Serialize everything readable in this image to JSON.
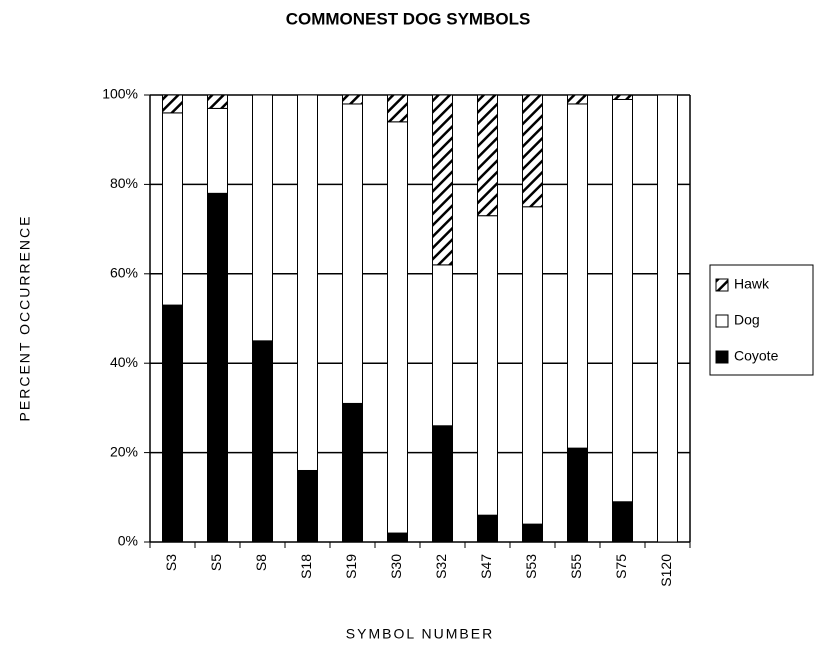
{
  "chart_data": {
    "type": "stacked_bar",
    "title": "COMMONEST DOG SYMBOLS",
    "x_label": "SYMBOL NUMBER",
    "y_label": "PERCENT OCCURRENCE",
    "categories": [
      "S3",
      "S5",
      "S8",
      "S18",
      "S19",
      "S30",
      "S32",
      "S47",
      "S53",
      "S55",
      "S75",
      "S120"
    ],
    "series": [
      {
        "name": "Hawk",
        "color": "#000000",
        "hatch": true,
        "values": [
          4,
          3,
          0,
          0,
          2,
          6,
          38,
          27,
          25,
          2,
          1,
          0
        ]
      },
      {
        "name": "Dog",
        "color": "#ffffff",
        "hatch": false,
        "values": [
          43,
          19,
          55,
          84,
          67,
          92,
          36,
          67,
          71,
          77,
          90,
          100
        ]
      },
      {
        "name": "Coyote",
        "color": "#000000",
        "hatch": false,
        "values": [
          53,
          78,
          45,
          16,
          31,
          2,
          26,
          6,
          4,
          21,
          9,
          0
        ]
      }
    ],
    "ylim": [
      0,
      100
    ],
    "yticks": [
      {
        "value": 0,
        "label": "0%"
      },
      {
        "value": 20,
        "label": "20%"
      },
      {
        "value": 40,
        "label": "40%"
      },
      {
        "value": 60,
        "label": "60%"
      },
      {
        "value": 80,
        "label": "80%"
      },
      {
        "value": 100,
        "label": "100%"
      }
    ],
    "grid": true,
    "legend": "right"
  }
}
